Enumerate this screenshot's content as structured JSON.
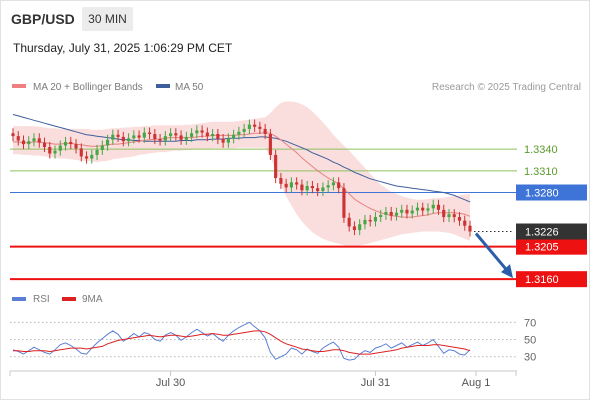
{
  "header": {
    "symbol": "GBP/USD",
    "timeframe": "30 MIN",
    "datetime": "Thursday, July 31, 2025 1:06:29 PM CET"
  },
  "credit": "Research © 2025 Trading Central",
  "colors": {
    "bull": "#45a845",
    "bear": "#cc3333",
    "bollinger": "#f5b5b5",
    "ma20": "#e88080",
    "ma50": "#3e5e9c",
    "rsi": "#5b7fd6",
    "rsi_ma": "#dd2020",
    "support": "#ee1111",
    "resistance": "#8fc060",
    "pivot": "#3e74d8",
    "price_tag": "#333333",
    "arrow": "#2a5ea8"
  },
  "chart_data": [
    {
      "type": "candlestick",
      "legend": [
        {
          "name": "MA 20 + Bollinger Bands",
          "color": "#f08080"
        },
        {
          "name": "MA 50",
          "color": "#3e5e9c"
        }
      ],
      "x_ticks": [
        "Jul 30",
        "Jul 31",
        "Aug 1"
      ],
      "ylim": [
        1.3145,
        1.3415
      ],
      "levels": [
        {
          "label": "1.3340",
          "value": 1.334,
          "kind": "resistance"
        },
        {
          "label": "1.3310",
          "value": 1.331,
          "kind": "resistance"
        },
        {
          "label": "1.3280",
          "value": 1.328,
          "kind": "pivot"
        },
        {
          "label": "1.3205",
          "value": 1.3205,
          "kind": "support"
        },
        {
          "label": "1.3160",
          "value": 1.316,
          "kind": "support"
        }
      ],
      "last_price": {
        "label": "1.3226",
        "value": 1.3226
      },
      "close": [
        1.3358,
        1.3352,
        1.3347,
        1.3351,
        1.3355,
        1.3349,
        1.3343,
        1.3334,
        1.3338,
        1.3345,
        1.335,
        1.3347,
        1.3341,
        1.333,
        1.3327,
        1.3332,
        1.3339,
        1.3345,
        1.3353,
        1.336,
        1.3357,
        1.3351,
        1.3355,
        1.3359,
        1.3356,
        1.3363,
        1.3361,
        1.3354,
        1.3352,
        1.3358,
        1.3362,
        1.3359,
        1.3353,
        1.3357,
        1.3362,
        1.3366,
        1.3363,
        1.3358,
        1.3361,
        1.3354,
        1.3349,
        1.3355,
        1.336,
        1.3364,
        1.3368,
        1.3374,
        1.3371,
        1.3368,
        1.3361,
        1.3332,
        1.33,
        1.3292,
        1.3287,
        1.3294,
        1.3291,
        1.3283,
        1.3289,
        1.3286,
        1.3282,
        1.3287,
        1.329,
        1.3294,
        1.3286,
        1.3245,
        1.3233,
        1.3228,
        1.3236,
        1.3242,
        1.324,
        1.3246,
        1.3249,
        1.3253,
        1.3248,
        1.3252,
        1.3256,
        1.3251,
        1.3255,
        1.3259,
        1.3255,
        1.3258,
        1.3263,
        1.3256,
        1.3246,
        1.325,
        1.3246,
        1.3241,
        1.3234,
        1.3226
      ],
      "ma20": [
        1.335,
        1.335,
        1.3349,
        1.3349,
        1.335,
        1.335,
        1.3349,
        1.3348,
        1.3347,
        1.3347,
        1.3348,
        1.3348,
        1.3347,
        1.3346,
        1.3345,
        1.3344,
        1.3344,
        1.3345,
        1.3346,
        1.3347,
        1.3347,
        1.3348,
        1.3349,
        1.335,
        1.3351,
        1.3352,
        1.3353,
        1.3354,
        1.3354,
        1.3355,
        1.3356,
        1.3356,
        1.3356,
        1.3356,
        1.3356,
        1.3357,
        1.3358,
        1.3358,
        1.3359,
        1.3359,
        1.3359,
        1.3359,
        1.3359,
        1.336,
        1.336,
        1.3361,
        1.3362,
        1.3362,
        1.3363,
        1.3362,
        1.3358,
        1.3353,
        1.3347,
        1.3341,
        1.3335,
        1.3328,
        1.3322,
        1.3316,
        1.331,
        1.3305,
        1.33,
        1.3296,
        1.3292,
        1.3285,
        1.3278,
        1.3271,
        1.3266,
        1.3262,
        1.3258,
        1.3255,
        1.3252,
        1.325,
        1.3248,
        1.3247,
        1.3246,
        1.3246,
        1.3246,
        1.3247,
        1.3248,
        1.3249,
        1.3251,
        1.3252,
        1.3252,
        1.3252,
        1.3252,
        1.3251,
        1.325,
        1.3247
      ],
      "bb_upper": [
        1.3372,
        1.3372,
        1.3372,
        1.3372,
        1.3372,
        1.3371,
        1.337,
        1.3369,
        1.3369,
        1.3368,
        1.3368,
        1.3368,
        1.3368,
        1.3368,
        1.3368,
        1.3367,
        1.3367,
        1.3367,
        1.3368,
        1.3369,
        1.3369,
        1.337,
        1.337,
        1.3371,
        1.3371,
        1.3372,
        1.3372,
        1.3373,
        1.3373,
        1.3373,
        1.3373,
        1.3373,
        1.3373,
        1.3374,
        1.3374,
        1.3375,
        1.3376,
        1.3377,
        1.3378,
        1.3378,
        1.3378,
        1.3378,
        1.3378,
        1.3379,
        1.338,
        1.3381,
        1.3382,
        1.3383,
        1.3384,
        1.339,
        1.3398,
        1.3404,
        1.3406,
        1.3406,
        1.3405,
        1.3402,
        1.3398,
        1.3392,
        1.3385,
        1.3377,
        1.3369,
        1.336,
        1.3352,
        1.3345,
        1.3338,
        1.333,
        1.3322,
        1.3314,
        1.3306,
        1.3298,
        1.3291,
        1.3286,
        1.3281,
        1.3278,
        1.3275,
        1.3273,
        1.3271,
        1.327,
        1.327,
        1.3271,
        1.3272,
        1.3272,
        1.3273,
        1.3274,
        1.3275,
        1.3276,
        1.3277,
        1.3278
      ],
      "bb_lower": [
        1.3333,
        1.3333,
        1.3332,
        1.3332,
        1.3331,
        1.3331,
        1.333,
        1.3329,
        1.3328,
        1.3327,
        1.3327,
        1.3326,
        1.3325,
        1.3324,
        1.3324,
        1.3323,
        1.3322,
        1.3323,
        1.3324,
        1.3326,
        1.3327,
        1.3328,
        1.3329,
        1.333,
        1.3332,
        1.3333,
        1.3334,
        1.3335,
        1.3336,
        1.3336,
        1.3337,
        1.3338,
        1.3338,
        1.3339,
        1.3339,
        1.334,
        1.334,
        1.334,
        1.3341,
        1.3341,
        1.3341,
        1.3341,
        1.3341,
        1.3342,
        1.3342,
        1.3342,
        1.3342,
        1.3342,
        1.3342,
        1.333,
        1.331,
        1.329,
        1.3275,
        1.3262,
        1.325,
        1.324,
        1.3232,
        1.3225,
        1.322,
        1.3216,
        1.3213,
        1.3211,
        1.3209,
        1.3207,
        1.3206,
        1.3206,
        1.3207,
        1.3208,
        1.321,
        1.3212,
        1.3214,
        1.3216,
        1.3218,
        1.322,
        1.3222,
        1.3223,
        1.3224,
        1.3225,
        1.3226,
        1.3226,
        1.3226,
        1.3226,
        1.3225,
        1.3224,
        1.3222,
        1.3219,
        1.3216,
        1.3213
      ],
      "ma50": [
        1.3388,
        1.3386,
        1.3384,
        1.3382,
        1.338,
        1.3378,
        1.3376,
        1.3374,
        1.3372,
        1.337,
        1.3368,
        1.3366,
        1.3364,
        1.3362,
        1.336,
        1.3359,
        1.3358,
        1.3357,
        1.3356,
        1.3355,
        1.3354,
        1.3353,
        1.3353,
        1.3352,
        1.3352,
        1.3351,
        1.3351,
        1.3351,
        1.3351,
        1.3351,
        1.3351,
        1.3351,
        1.3352,
        1.3352,
        1.3352,
        1.3353,
        1.3353,
        1.3353,
        1.3354,
        1.3354,
        1.3354,
        1.3355,
        1.3355,
        1.3355,
        1.3356,
        1.3356,
        1.3356,
        1.3357,
        1.3357,
        1.3356,
        1.3355,
        1.3353,
        1.3351,
        1.3348,
        1.3345,
        1.3342,
        1.3339,
        1.3335,
        1.3332,
        1.3329,
        1.3326,
        1.3322,
        1.3319,
        1.3315,
        1.3312,
        1.3308,
        1.3305,
        1.3302,
        1.3299,
        1.3297,
        1.3295,
        1.3293,
        1.3291,
        1.3289,
        1.3288,
        1.3287,
        1.3286,
        1.3285,
        1.3284,
        1.3283,
        1.3282,
        1.3281,
        1.328,
        1.3278,
        1.3276,
        1.3273,
        1.327,
        1.3267
      ]
    },
    {
      "type": "line",
      "legend": [
        {
          "name": "RSI",
          "color": "#5b7fd6"
        },
        {
          "name": "9MA",
          "color": "#dd2020"
        }
      ],
      "y_ticks": [
        "70",
        "50",
        "30"
      ],
      "ylim": [
        18,
        82
      ],
      "series": [
        {
          "name": "RSI",
          "values": [
            38,
            36,
            33,
            37,
            41,
            38,
            35,
            33,
            38,
            44,
            46,
            43,
            39,
            34,
            33,
            40,
            46,
            51,
            56,
            60,
            56,
            48,
            52,
            57,
            53,
            58,
            56,
            50,
            48,
            55,
            58,
            55,
            49,
            53,
            58,
            62,
            58,
            54,
            57,
            52,
            48,
            55,
            60,
            64,
            67,
            70,
            65,
            60,
            52,
            35,
            27,
            30,
            33,
            40,
            38,
            33,
            39,
            36,
            34,
            40,
            44,
            47,
            41,
            28,
            26,
            27,
            33,
            37,
            35,
            40,
            42,
            45,
            40,
            43,
            46,
            41,
            44,
            47,
            43,
            46,
            50,
            42,
            34,
            38,
            37,
            33,
            32,
            38
          ]
        },
        {
          "name": "9MA",
          "values": [
            37,
            37,
            36,
            36,
            37,
            37,
            37,
            36,
            37,
            38,
            39,
            40,
            40,
            40,
            39,
            40,
            41,
            42,
            45,
            47,
            49,
            50,
            51,
            52,
            53,
            54,
            55,
            54,
            53,
            54,
            55,
            55,
            54,
            53,
            54,
            55,
            56,
            56,
            57,
            56,
            55,
            55,
            56,
            57,
            58,
            59,
            60,
            60,
            59,
            56,
            52,
            48,
            45,
            43,
            41,
            39,
            38,
            37,
            36,
            36,
            37,
            38,
            38,
            37,
            35,
            34,
            33,
            33,
            33,
            34,
            35,
            36,
            37,
            38,
            40,
            41,
            42,
            43,
            43,
            43,
            44,
            44,
            43,
            42,
            41,
            40,
            39,
            37
          ]
        }
      ]
    }
  ]
}
